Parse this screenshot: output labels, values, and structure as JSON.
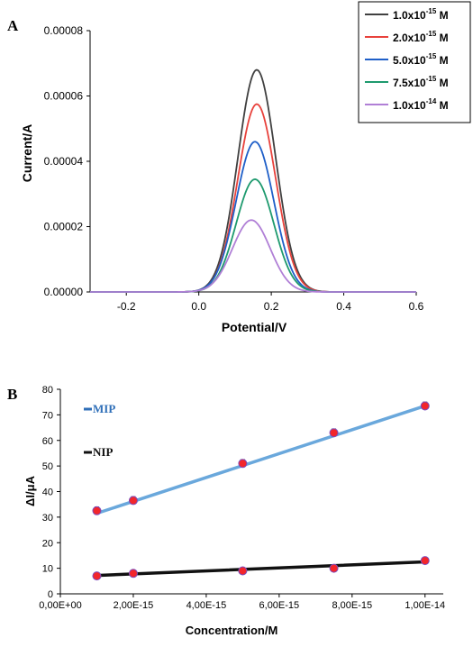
{
  "chart_data": [
    {
      "type": "line",
      "panel_label": "A",
      "xlabel": "Potential/V",
      "ylabel": "Current/A",
      "xlim": [
        -0.3,
        0.6
      ],
      "ylim": [
        0,
        8e-05
      ],
      "xticks": [
        "-0.2",
        "0.0",
        "0.2",
        "0.4",
        "0.6"
      ],
      "xtick_values": [
        -0.2,
        0.0,
        0.2,
        0.4,
        0.6
      ],
      "yticks": [
        "0.00000",
        "0.00002",
        "0.00004",
        "0.00006",
        "0.00008"
      ],
      "ytick_values": [
        0,
        2e-05,
        4e-05,
        6e-05,
        8e-05
      ],
      "grid": false,
      "legend_position": "top-right",
      "series": [
        {
          "name": "1.0x10^-15 M",
          "base": "1.0x10",
          "exp": "-15",
          "unit": " M",
          "color": "#404040",
          "peak_x": 0.16,
          "peak_y": 6.8e-05,
          "width": 0.052
        },
        {
          "name": "2.0x10^-15 M",
          "base": "2.0x10",
          "exp": "-15",
          "unit": " M",
          "color": "#e8423c",
          "peak_x": 0.16,
          "peak_y": 5.75e-05,
          "width": 0.052
        },
        {
          "name": "5.0x10^-15 M",
          "base": "5.0x10",
          "exp": "-15",
          "unit": " M",
          "color": "#1f5fc8",
          "peak_x": 0.155,
          "peak_y": 4.6e-05,
          "width": 0.052
        },
        {
          "name": "7.5x10^-15 M",
          "base": "7.5x10",
          "exp": "-15",
          "unit": " M",
          "color": "#1e9a6e",
          "peak_x": 0.155,
          "peak_y": 3.45e-05,
          "width": 0.052
        },
        {
          "name": "1.0x10^-14 M",
          "base": "1.0x10",
          "exp": "-14",
          "unit": " M",
          "color": "#b07fd6",
          "peak_x": 0.145,
          "peak_y": 2.2e-05,
          "width": 0.052
        }
      ]
    },
    {
      "type": "scatter",
      "panel_label": "B",
      "xlabel": "Concentration/M",
      "ylabel": "ΔI/μA",
      "xlim": [
        0,
        1.05e-14
      ],
      "ylim": [
        0,
        80
      ],
      "xticks": [
        "0,00E+00",
        "2,00E-15",
        "4,00E-15",
        "6,00E-15",
        "8,00E-15",
        "1,00E-14"
      ],
      "xtick_values": [
        0,
        2e-15,
        4e-15,
        6e-15,
        8e-15,
        1e-14
      ],
      "yticks": [
        "0",
        "10",
        "20",
        "30",
        "40",
        "50",
        "60",
        "70",
        "80"
      ],
      "ytick_values": [
        0,
        10,
        20,
        30,
        40,
        50,
        60,
        70,
        80
      ],
      "grid": false,
      "series": [
        {
          "name": "MIP",
          "color": "#6aa8dc",
          "label_color": "#2f6fb8",
          "x": [
            1e-15,
            2e-15,
            5e-15,
            7.5e-15,
            1e-14
          ],
          "y": [
            32.5,
            36.5,
            51,
            63,
            73.5
          ],
          "err": [
            1.5,
            1.5,
            1.5,
            1.5,
            1.5
          ],
          "fit": [
            [
              1e-15,
              31.5
            ],
            [
              1e-14,
              73.5
            ]
          ]
        },
        {
          "name": "NIP",
          "color": "#111111",
          "label_color": "#111111",
          "x": [
            1e-15,
            2e-15,
            5e-15,
            7.5e-15,
            1e-14
          ],
          "y": [
            7,
            8,
            9,
            10,
            13
          ],
          "err": [
            0,
            0,
            0,
            0,
            0
          ],
          "fit": [
            [
              1e-15,
              7.2
            ],
            [
              1e-14,
              12.5
            ]
          ]
        }
      ]
    }
  ]
}
